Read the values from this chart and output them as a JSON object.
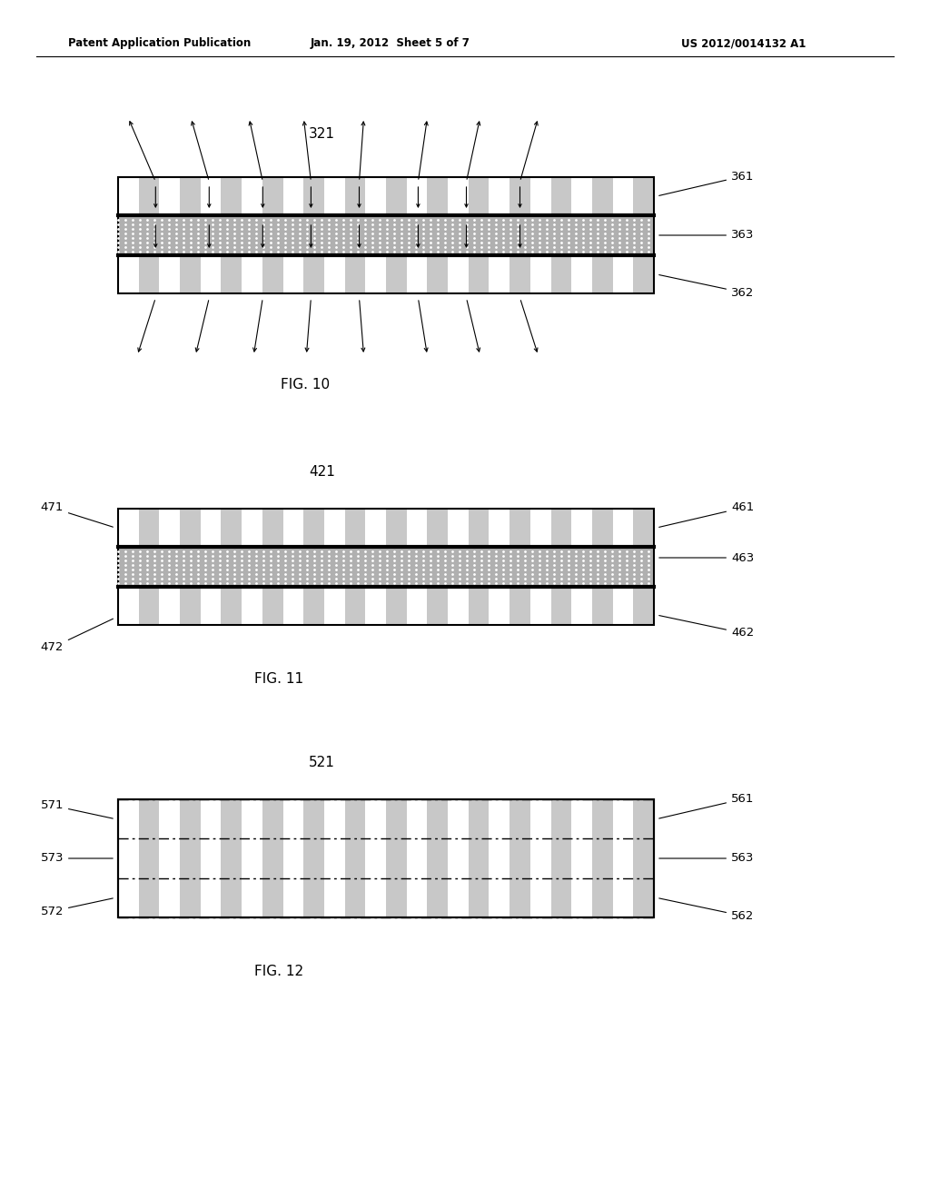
{
  "bg_color": "#ffffff",
  "header_left": "Patent Application Publication",
  "header_mid": "Jan. 19, 2012  Sheet 5 of 7",
  "header_right": "US 2012/0014132 A1",
  "fig10_label": "321",
  "fig10_caption": "FIG. 10",
  "fig10_label_361": "361",
  "fig10_label_363": "363",
  "fig10_label_362": "362",
  "fig11_label": "421",
  "fig11_caption": "FIG. 11",
  "fig11_label_461": "461",
  "fig11_label_463": "463",
  "fig11_label_462": "462",
  "fig11_label_471": "471",
  "fig11_label_472": "472",
  "fig12_label": "521",
  "fig12_caption": "FIG. 12",
  "fig12_label_561": "561",
  "fig12_label_563": "563",
  "fig12_label_562": "562",
  "fig12_label_571": "571",
  "fig12_label_572": "572",
  "fig12_label_573": "573",
  "dotted_fill_color": "#b8b8b8",
  "line_color": "#000000",
  "stripe_light": "#ffffff",
  "stripe_dark": "#c0c0c0"
}
